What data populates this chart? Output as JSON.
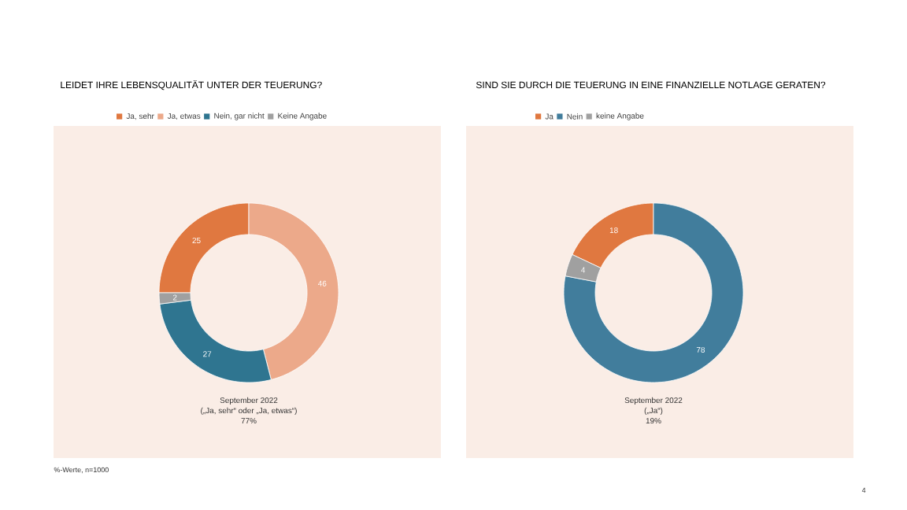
{
  "chart_data": [
    {
      "type": "donut",
      "title": "LEIDET IHRE LEBENSQUALITÄT UNTER DER TEUERUNG?",
      "categories": [
        "Ja, sehr",
        "Ja, etwas",
        "Nein, gar nicht",
        "Keine Angabe"
      ],
      "values": [
        25,
        46,
        27,
        2
      ],
      "colors": [
        "#e07840",
        "#eca98a",
        "#2f7590",
        "#a0a0a0"
      ],
      "legend": "top",
      "data_labels": true,
      "annotations": [
        "September 2022",
        "(„Ja, sehr“ oder „Ja, etwas“)",
        "77%",
        "%-Werte, n=1000"
      ]
    },
    {
      "type": "donut",
      "title": "SIND SIE DURCH DIE TEUERUNG IN EINE FINANZIELLE NOTLAGE GERATEN?",
      "categories": [
        "Ja",
        "Nein",
        "keine Angabe"
      ],
      "values": [
        18,
        78,
        4
      ],
      "colors": [
        "#e07840",
        "#417d9c",
        "#a0a0a0"
      ],
      "legend": "top",
      "data_labels": true,
      "annotations": [
        "September 2022",
        "(„Ja“)",
        "19%",
        "4"
      ]
    }
  ]
}
